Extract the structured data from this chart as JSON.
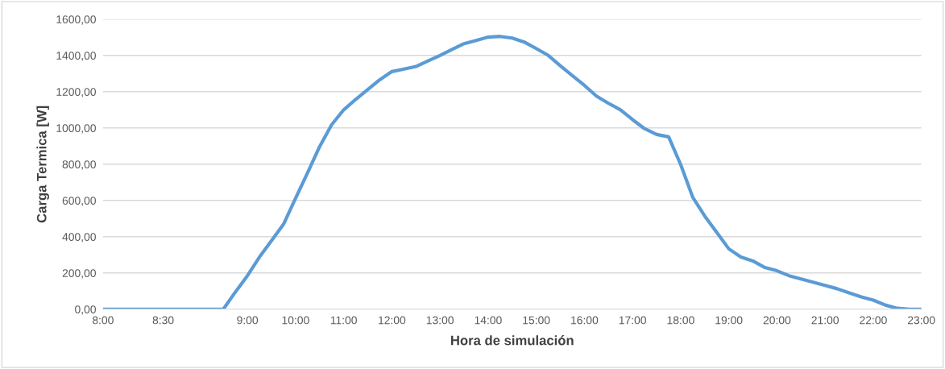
{
  "chart_data": {
    "type": "line",
    "xlabel": "Hora de simulación",
    "ylabel": "Carga Termica [W]",
    "categories": [
      "8:00",
      null,
      null,
      null,
      null,
      "8:30",
      null,
      null,
      null,
      null,
      null,
      null,
      "9:00",
      null,
      null,
      null,
      "10:00",
      null,
      null,
      null,
      "11:00",
      null,
      null,
      null,
      "12:00",
      null,
      null,
      null,
      "13:00",
      null,
      null,
      null,
      "14:00",
      null,
      null,
      null,
      "15:00",
      null,
      null,
      null,
      "16:00",
      null,
      null,
      null,
      "17:00",
      null,
      null,
      null,
      "18:00",
      null,
      null,
      null,
      "19:00",
      null,
      null,
      null,
      "20:00",
      null,
      null,
      null,
      "21:00",
      null,
      null,
      null,
      "22:00",
      null,
      null,
      null,
      "23:00"
    ],
    "series": [
      {
        "color": "#5b9bd5",
        "values": [
          0,
          0,
          0,
          0,
          0,
          0,
          0,
          0,
          0,
          0,
          0,
          95,
          185,
          288,
          378,
          469,
          612,
          753,
          897,
          1018,
          1100,
          1158,
          1212,
          1266,
          1311,
          1325,
          1339,
          1370,
          1400,
          1433,
          1465,
          1483,
          1501,
          1505,
          1496,
          1474,
          1438,
          1400,
          1343,
          1289,
          1235,
          1176,
          1136,
          1100,
          1046,
          996,
          964,
          951,
          798,
          618,
          514,
          424,
          333,
          288,
          266,
          230,
          212,
          185,
          167,
          149,
          131,
          113,
          90,
          68,
          50,
          23,
          5,
          0,
          0
        ]
      }
    ],
    "ylim": [
      0,
      1600
    ],
    "yticks": [
      {
        "value": 0,
        "label": "0,00"
      },
      {
        "value": 200,
        "label": "200,00"
      },
      {
        "value": 400,
        "label": "400,00"
      },
      {
        "value": 600,
        "label": "600,00"
      },
      {
        "value": 800,
        "label": "800,00"
      },
      {
        "value": 1000,
        "label": "1000,00"
      },
      {
        "value": 1200,
        "label": "1200,00"
      },
      {
        "value": 1400,
        "label": "1400,00"
      },
      {
        "value": 1600,
        "label": "1600,00"
      }
    ],
    "grid": "y",
    "legend": false,
    "marker": "none",
    "line_style": "solid"
  }
}
